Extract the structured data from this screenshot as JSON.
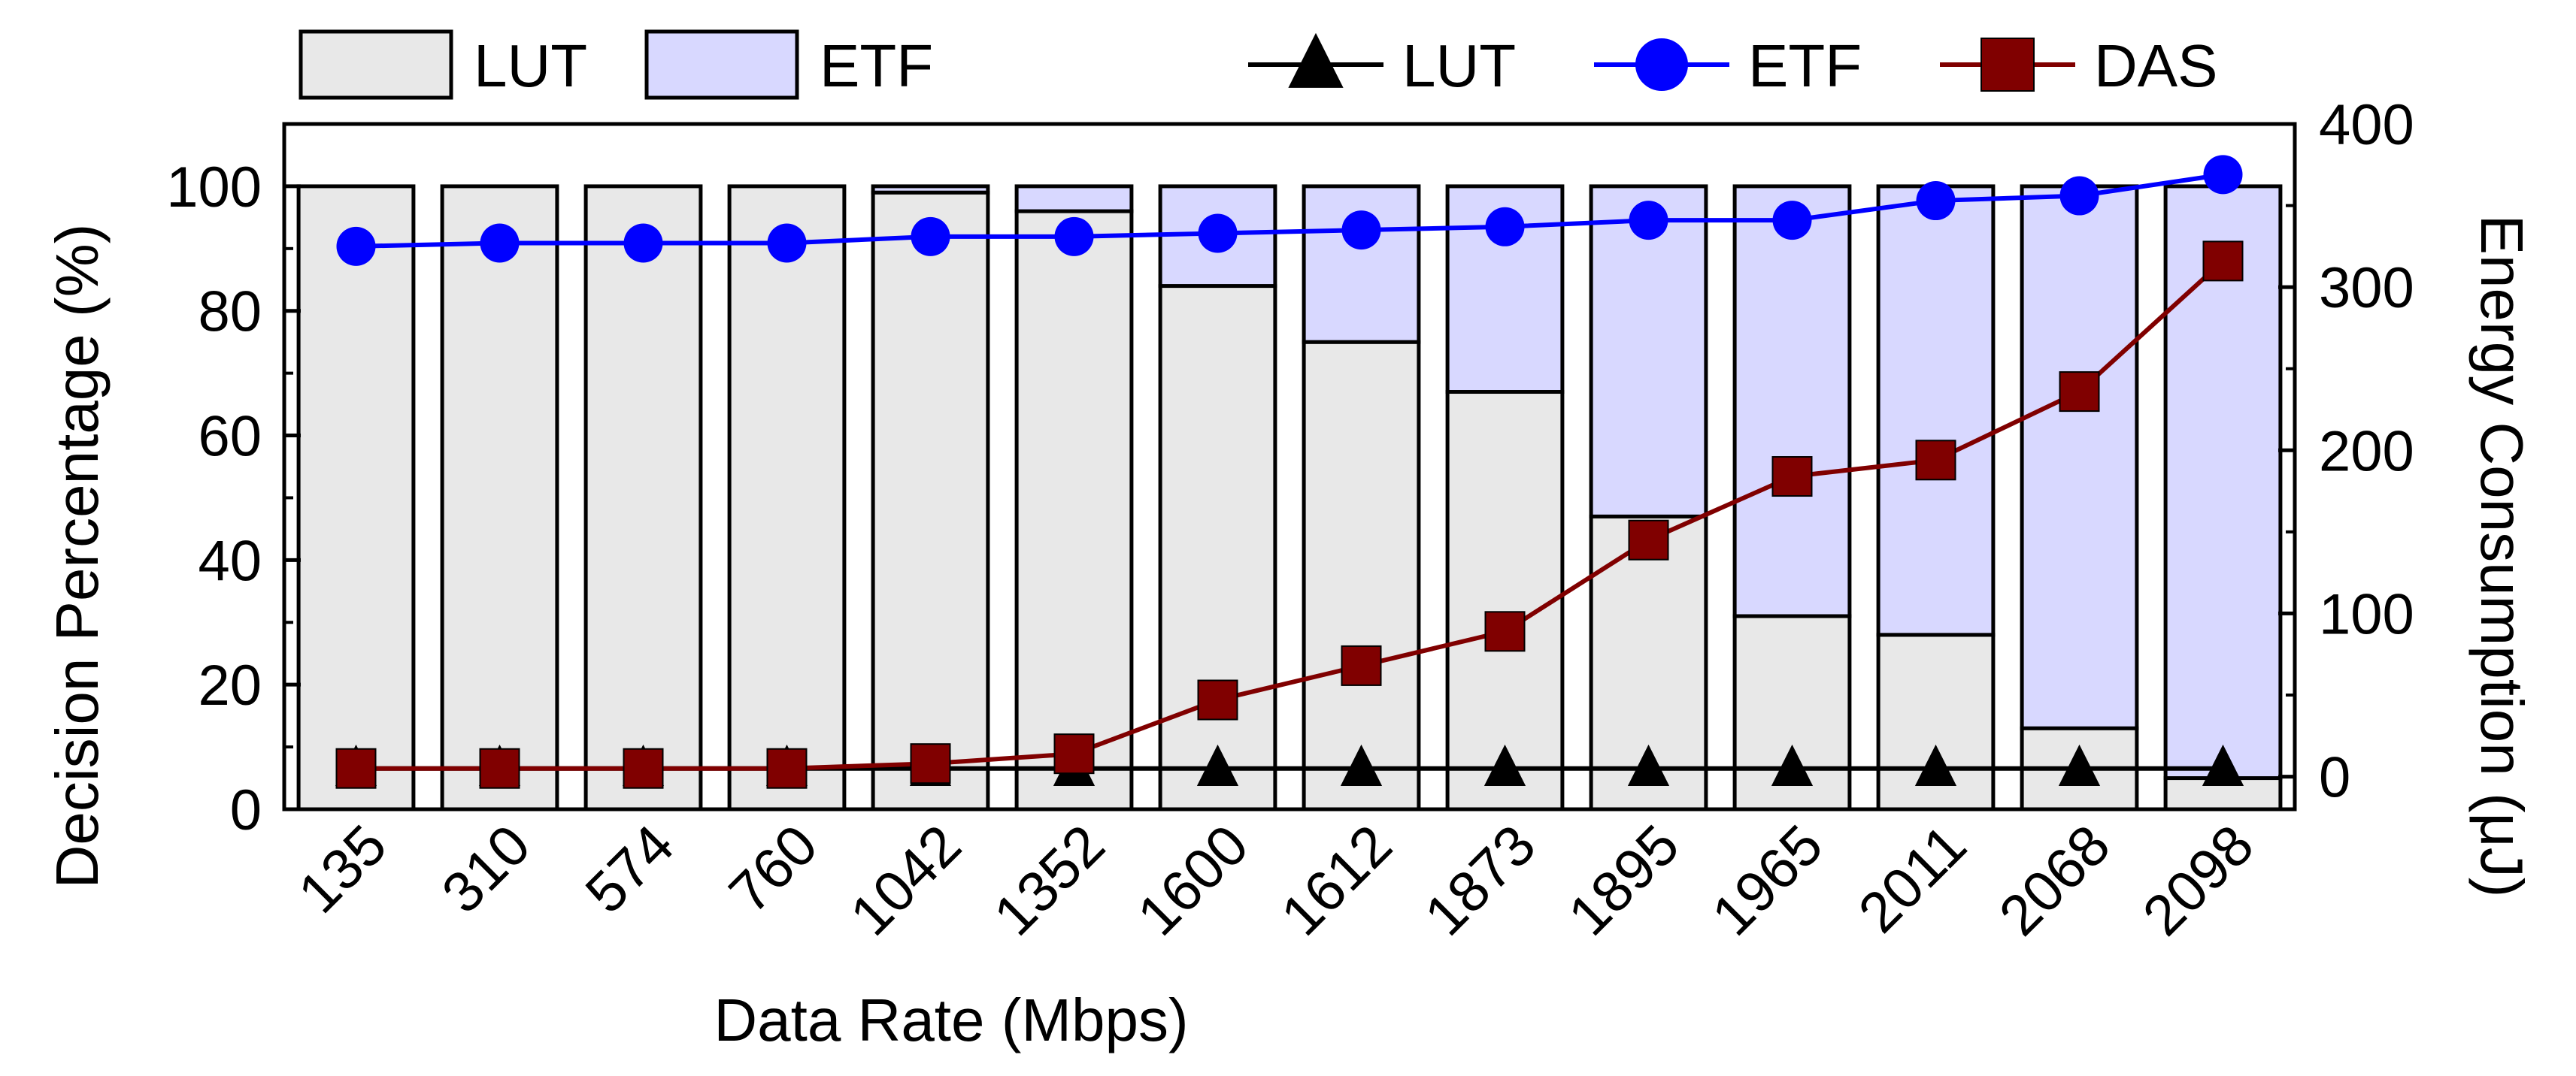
{
  "chart_data": {
    "type": "bar",
    "xlabel": "Data Rate (Mbps)",
    "ylabel": "Decision Percentage (%)",
    "y2label": "Energy Consumption (μJ)",
    "ylim": [
      0,
      110
    ],
    "y2lim": [
      -20,
      400
    ],
    "yticks": [
      0,
      20,
      40,
      60,
      80,
      100
    ],
    "y2ticks": [
      0,
      100,
      200,
      300,
      400
    ],
    "categories": [
      "135",
      "310",
      "574",
      "760",
      "1042",
      "1352",
      "1600",
      "1612",
      "1873",
      "1895",
      "1965",
      "2011",
      "2068",
      "2098"
    ],
    "bar_series": [
      {
        "name": "LUT",
        "color": "#e8e8e8",
        "values": [
          100,
          100,
          100,
          100,
          99,
          96,
          84,
          75,
          67,
          47,
          31,
          28,
          13,
          5
        ]
      },
      {
        "name": "ETF",
        "color": "#d8d8ff",
        "values": [
          0,
          0,
          0,
          0,
          1,
          4,
          16,
          25,
          33,
          53,
          69,
          72,
          87,
          95
        ]
      }
    ],
    "line_series": [
      {
        "name": "LUT",
        "color": "#000000",
        "marker": "triangle",
        "values": [
          5,
          5,
          5,
          5,
          5,
          5,
          5,
          5,
          5,
          5,
          5,
          5,
          5,
          5
        ]
      },
      {
        "name": "ETF",
        "color": "#0000ff",
        "marker": "circle",
        "values": [
          325,
          327,
          327,
          327,
          331,
          331,
          333,
          335,
          337,
          341,
          341,
          353,
          356,
          369
        ]
      },
      {
        "name": "DAS",
        "color": "#800000",
        "marker": "square",
        "values": [
          5,
          5,
          5,
          5,
          8,
          14,
          47,
          68,
          89,
          145,
          184,
          194,
          236,
          316
        ]
      }
    ],
    "legend_position": "top"
  }
}
